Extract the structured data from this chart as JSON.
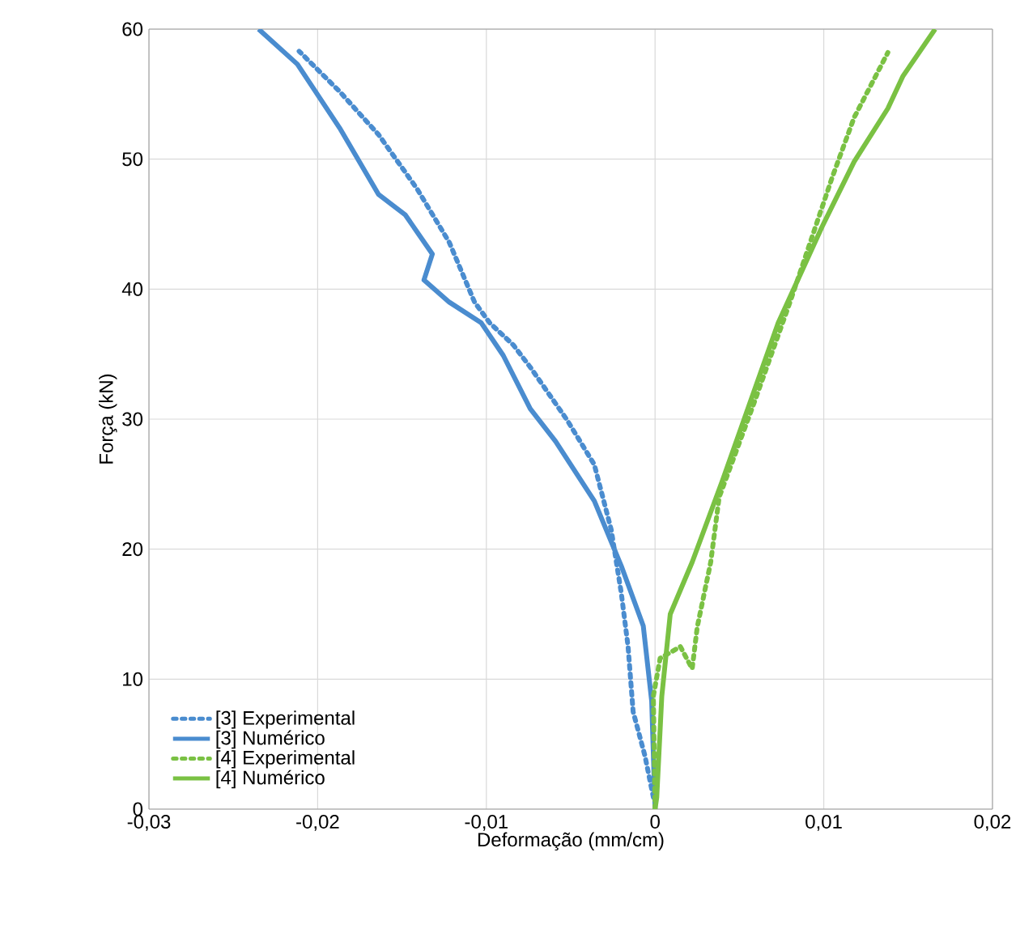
{
  "chart_data": {
    "type": "line",
    "xlabel": "Deformação (mm/cm)",
    "ylabel": "Força (kN)",
    "xlim": [
      -0.03,
      0.02
    ],
    "ylim": [
      0,
      60
    ],
    "xticks": [
      {
        "value": -0.03,
        "label": "-0,03"
      },
      {
        "value": -0.02,
        "label": "-0,02"
      },
      {
        "value": -0.01,
        "label": "-0,01"
      },
      0,
      {
        "value": 0.01,
        "label": "0,01"
      },
      {
        "value": 0.02,
        "label": "0,02"
      }
    ],
    "yticks": [
      0,
      10,
      20,
      30,
      40,
      50,
      60
    ],
    "grid": true,
    "legend": "bottom left",
    "marker": "none",
    "series": [
      {
        "name": "[3] Experimental",
        "color": "#4a8ccf",
        "line_style": "dotted",
        "x": [
          -0.0001,
          -0.0006,
          -0.0013,
          -0.0016,
          -0.002,
          -0.0026,
          -0.0036,
          -0.0052,
          -0.0074,
          -0.0084,
          -0.0098,
          -0.0107,
          -0.0122,
          -0.0141,
          -0.0164,
          -0.0187,
          -0.0211
        ],
        "values": [
          0.9,
          4.1,
          7.5,
          12.5,
          16.6,
          21.5,
          26.5,
          29.9,
          34.0,
          35.7,
          37.4,
          39.0,
          43.6,
          47.7,
          51.9,
          55.2,
          58.3
        ]
      },
      {
        "name": "[3] Numérico",
        "color": "#4a8ccf",
        "line_style": "solid",
        "x": [
          0,
          -0.0002,
          -0.0007,
          -0.002,
          -0.0036,
          -0.0059,
          -0.0074,
          -0.009,
          -0.0103,
          -0.0122,
          -0.0137,
          -0.0132,
          -0.0148,
          -0.0164,
          -0.0187,
          -0.0212,
          -0.0235
        ],
        "values": [
          0,
          8.3,
          14.1,
          18.7,
          23.7,
          28.3,
          30.8,
          34.9,
          37.4,
          39.0,
          40.7,
          42.7,
          45.7,
          47.3,
          52.4,
          57.3,
          60
        ]
      },
      {
        "name": "[4] Experimental",
        "color": "#7ac143",
        "line_style": "dotted",
        "x": [
          0,
          -0.0001,
          0.0003,
          0.0015,
          0.0022,
          0.0025,
          0.0033,
          0.0038,
          0.0058,
          0.008,
          0.0105,
          0.0118,
          0.0138
        ],
        "values": [
          0,
          8.7,
          11.6,
          12.5,
          10.8,
          14,
          19,
          24,
          31,
          39,
          48.6,
          53.2,
          58.2
        ]
      },
      {
        "name": "[4] Numérico",
        "color": "#7ac143",
        "line_style": "solid",
        "x": [
          0,
          0.0001,
          0.0004,
          0.0009,
          0.0022,
          0.004,
          0.0073,
          0.0099,
          0.0118,
          0.0138,
          0.0147,
          0.0166
        ],
        "values": [
          0,
          0.9,
          8.7,
          15,
          19,
          25.3,
          37.4,
          44.8,
          49.8,
          53.9,
          56.4,
          60
        ]
      }
    ]
  }
}
